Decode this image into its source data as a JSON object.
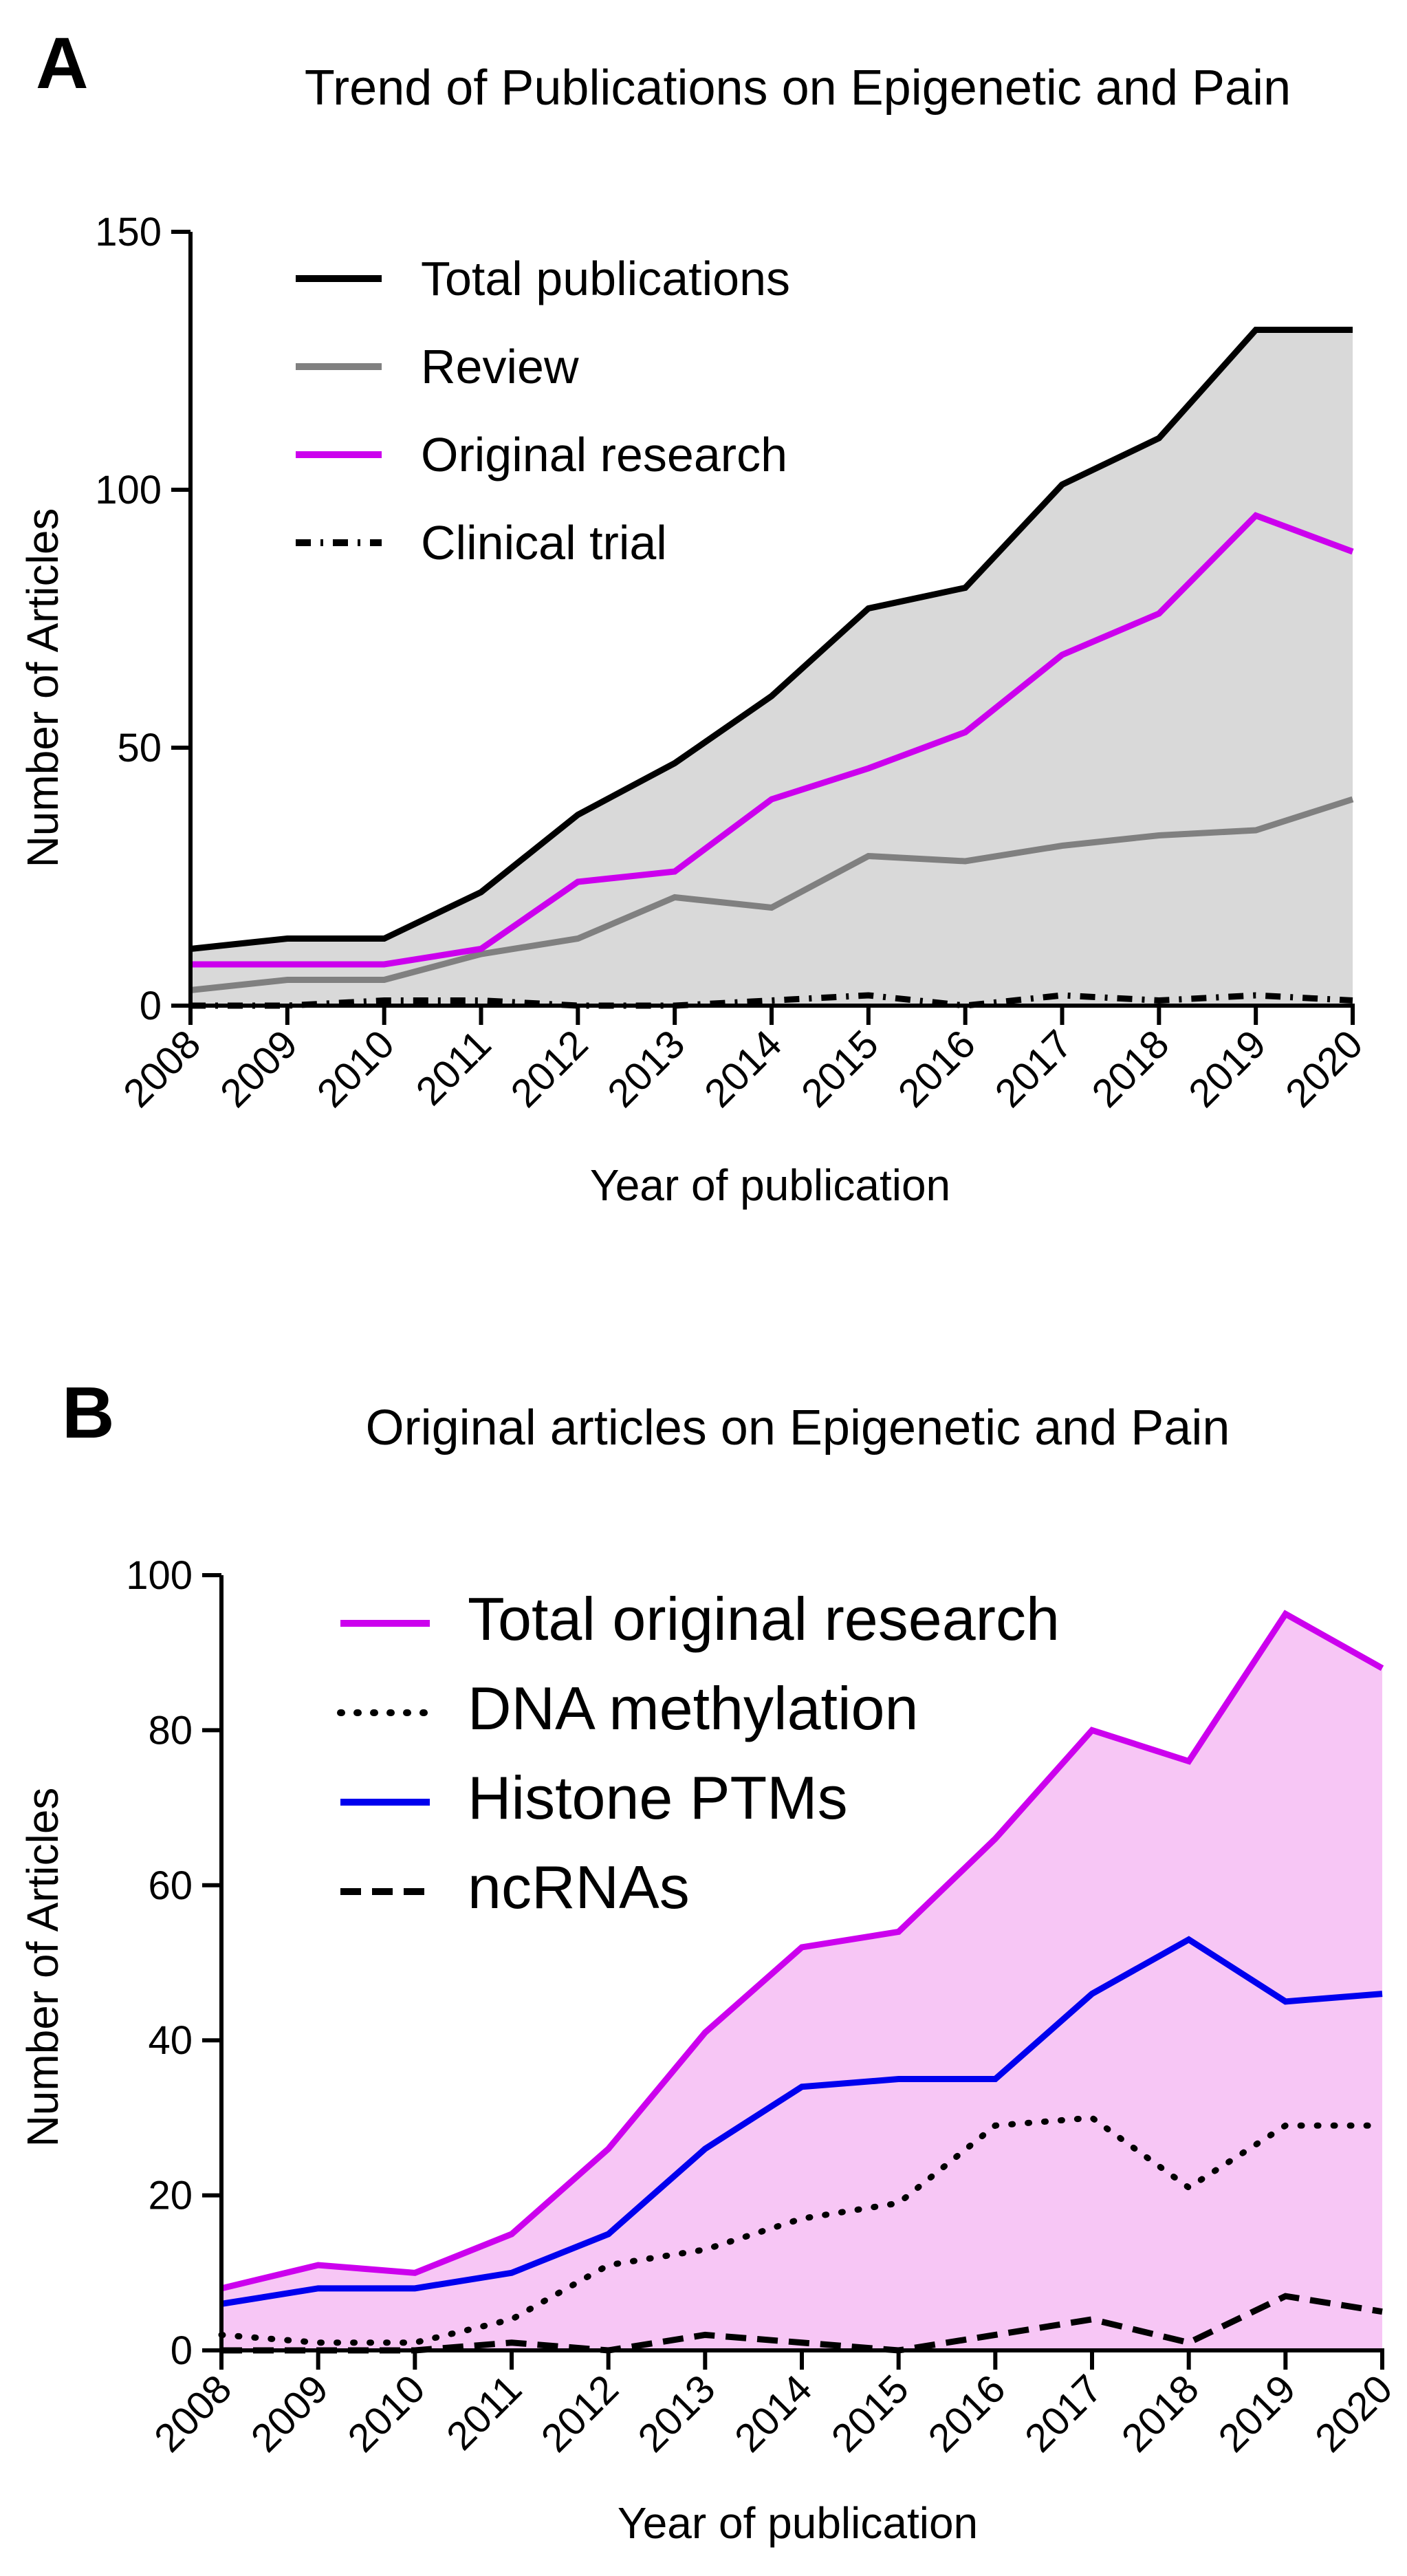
{
  "chart_data": [
    {
      "type": "area",
      "panel_label": "A",
      "title": "Trend of Publications on Epigenetic and Pain",
      "xlabel": "Year of publication",
      "ylabel": "Number of Articles",
      "ylim": [
        0,
        150
      ],
      "yticks": [
        "0",
        "50",
        "100",
        "150"
      ],
      "categories": [
        "2008",
        "2009",
        "2010",
        "2011",
        "2012",
        "2013",
        "2014",
        "2015",
        "2016",
        "2017",
        "2018",
        "2019",
        "2020"
      ],
      "legend_position": "top-left",
      "fill_color": "#d9d9d9",
      "series": [
        {
          "name": "Total publications",
          "color": "#000000",
          "style": "solid",
          "filled": true,
          "values": [
            11,
            13,
            13,
            22,
            37,
            47,
            60,
            77,
            81,
            101,
            110,
            131,
            131
          ]
        },
        {
          "name": "Review",
          "color": "#808080",
          "style": "solid",
          "values": [
            3,
            5,
            5,
            10,
            13,
            21,
            19,
            29,
            28,
            31,
            33,
            34,
            40
          ]
        },
        {
          "name": "Original research",
          "color": "#cc00ee",
          "style": "solid",
          "values": [
            8,
            8,
            8,
            11,
            24,
            26,
            40,
            46,
            53,
            68,
            76,
            95,
            88
          ]
        },
        {
          "name": "Clinical trial",
          "color": "#000000",
          "style": "dashdot",
          "values": [
            0,
            0,
            1,
            1,
            0,
            0,
            1,
            2,
            0,
            2,
            1,
            2,
            1
          ]
        }
      ]
    },
    {
      "type": "area",
      "panel_label": "B",
      "title": "Original articles on Epigenetic and Pain",
      "xlabel": "Year of publication",
      "ylabel": "Number of Articles",
      "ylim": [
        0,
        100
      ],
      "yticks": [
        "0",
        "20",
        "40",
        "60",
        "80",
        "100"
      ],
      "categories": [
        "2008",
        "2009",
        "2010",
        "2011",
        "2012",
        "2013",
        "2014",
        "2015",
        "2016",
        "2017",
        "2018",
        "2019",
        "2020"
      ],
      "legend_position": "top-left",
      "fill_color": "#f7c6f5",
      "series": [
        {
          "name": "Total original research",
          "color": "#cc00ee",
          "style": "solid",
          "filled": true,
          "values": [
            8,
            11,
            10,
            15,
            26,
            41,
            52,
            54,
            66,
            80,
            76,
            95,
            88
          ]
        },
        {
          "name": "DNA methylation",
          "color": "#000000",
          "style": "dotted",
          "values": [
            2,
            1,
            1,
            4,
            11,
            13,
            17,
            19,
            29,
            30,
            21,
            29,
            29
          ]
        },
        {
          "name": "Histone PTMs",
          "color": "#0000ee",
          "style": "solid",
          "values": [
            6,
            8,
            8,
            10,
            15,
            26,
            34,
            35,
            35,
            46,
            53,
            45,
            46
          ]
        },
        {
          "name": "ncRNAs",
          "color": "#000000",
          "style": "dashed",
          "values": [
            0,
            0,
            0,
            1,
            0,
            2,
            1,
            0,
            2,
            4,
            1,
            7,
            5
          ]
        }
      ]
    }
  ]
}
